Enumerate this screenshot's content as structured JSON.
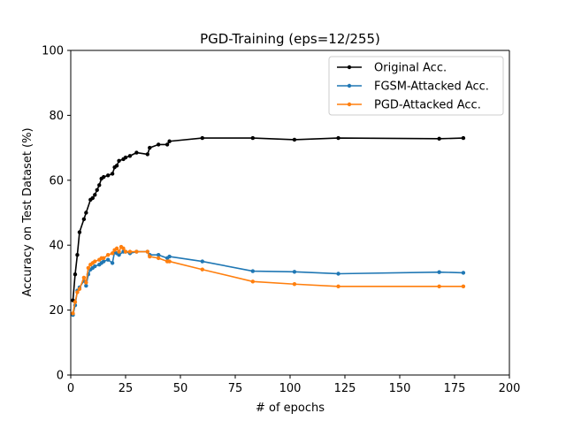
{
  "chart_data": {
    "type": "line",
    "title": "PGD-Training (eps=12/255)",
    "xlabel": "# of epochs",
    "ylabel": "Accuracy on Test Dataset (%)",
    "xlim": [
      0,
      200
    ],
    "ylim": [
      0,
      100
    ],
    "x_ticks": [
      "0",
      "25",
      "50",
      "75",
      "100",
      "125",
      "150",
      "175",
      "200"
    ],
    "y_ticks": [
      "0",
      "20",
      "40",
      "60",
      "80",
      "100"
    ],
    "grid": false,
    "legend_position": "top-right",
    "series": [
      {
        "name": "Original Acc.",
        "color": "#000000",
        "x": [
          1,
          2,
          3,
          4,
          6,
          7,
          9,
          10,
          11,
          12,
          13,
          14,
          15,
          17,
          19,
          20,
          21,
          22,
          24,
          25,
          27,
          30,
          35,
          36,
          40,
          44,
          45,
          60,
          83,
          102,
          122,
          168,
          179
        ],
        "y": [
          23,
          31,
          37,
          44,
          48,
          50,
          54,
          54.5,
          55.5,
          57,
          58.5,
          60.5,
          61,
          61.5,
          62,
          64,
          64.5,
          66,
          66.5,
          67,
          67.5,
          68.5,
          68,
          70,
          71,
          71,
          72,
          73,
          73,
          72.5,
          73,
          72.8,
          73
        ]
      },
      {
        "name": "FGSM-Attacked Acc.",
        "color": "#1f77b4",
        "x": [
          1,
          2,
          3,
          4,
          6,
          7,
          8,
          9,
          10,
          11,
          13,
          14,
          15,
          17,
          19,
          20,
          21,
          22,
          24,
          25,
          27,
          30,
          35,
          36,
          40,
          44,
          45,
          60,
          83,
          102,
          122,
          168,
          179
        ],
        "y": [
          18.5,
          21.5,
          26,
          27,
          29,
          27.5,
          31,
          32.5,
          33,
          33.5,
          34,
          34.5,
          35,
          35.5,
          34.5,
          38,
          37.5,
          37,
          38,
          38,
          37.5,
          38,
          38,
          37,
          37,
          36,
          36.5,
          35,
          32,
          31.8,
          31.2,
          31.7,
          31.5
        ]
      },
      {
        "name": "PGD-Attacked Acc.",
        "color": "#ff7f0e",
        "x": [
          1,
          2,
          3,
          4,
          6,
          7,
          8,
          9,
          10,
          11,
          13,
          14,
          15,
          17,
          19,
          20,
          21,
          22,
          23,
          24,
          25,
          27,
          30,
          35,
          36,
          40,
          44,
          45,
          60,
          83,
          102,
          122,
          168,
          179
        ],
        "y": [
          19,
          22.5,
          25.5,
          26.5,
          30,
          28.5,
          33,
          34,
          34.5,
          35,
          35.5,
          36,
          36,
          37,
          37.5,
          38.5,
          39,
          38,
          39.5,
          39,
          38,
          38,
          38,
          38,
          36.5,
          36,
          35,
          35,
          32.5,
          28.8,
          28,
          27.3,
          27.3,
          27.3
        ]
      }
    ]
  }
}
